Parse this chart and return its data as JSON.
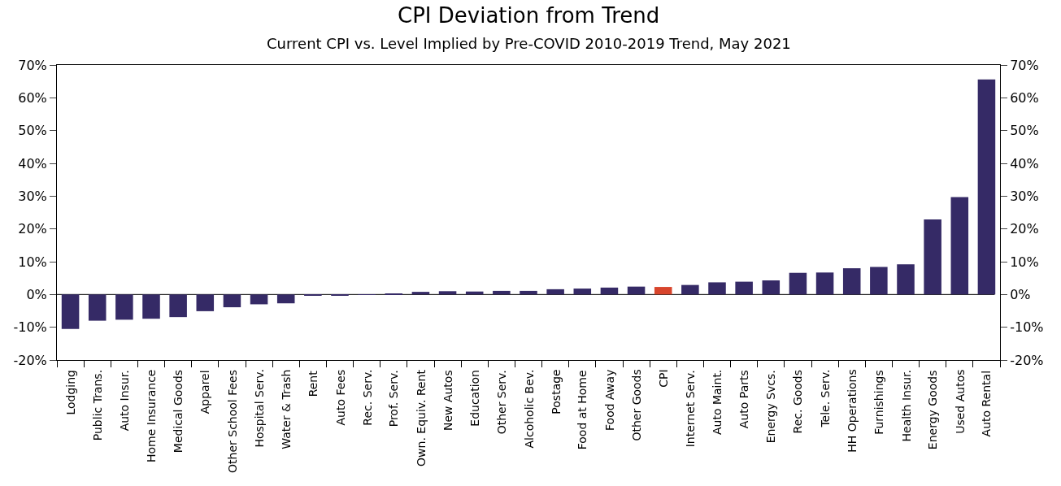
{
  "chart_data": {
    "type": "bar",
    "title": "CPI Deviation from Trend",
    "subtitle": "Current CPI vs. Level Implied by Pre-COVID 2010-2019 Trend, May 2021",
    "categories": [
      "Lodging",
      "Public Trans.",
      "Auto Insur.",
      "Home Insurance",
      "Medical Goods",
      "Apparel",
      "Other School Fees",
      "Hospital Serv.",
      "Water & Trash",
      "Rent",
      "Auto Fees",
      "Rec. Serv.",
      "Prof. Serv.",
      "Own. Equiv. Rent",
      "New Autos",
      "Education",
      "Other Serv.",
      "Alcoholic Bev.",
      "Postage",
      "Food at Home",
      "Food Away",
      "Other Goods",
      "CPI",
      "Internet Serv.",
      "Auto Maint.",
      "Auto Parts",
      "Energy Svcs.",
      "Rec. Goods",
      "Tele. Serv.",
      "HH Operations",
      "Furnishings",
      "Health Insur.",
      "Energy Goods",
      "Used Autos",
      "Auto Rental"
    ],
    "values": [
      -10.5,
      -8.0,
      -7.7,
      -7.4,
      -6.9,
      -5.1,
      -3.9,
      -3.0,
      -2.7,
      -0.4,
      -0.2,
      -0.1,
      0.2,
      0.8,
      1.0,
      0.9,
      1.1,
      1.1,
      1.6,
      1.8,
      2.1,
      2.4,
      2.3,
      2.9,
      3.7,
      3.9,
      4.3,
      6.6,
      6.7,
      8.0,
      8.4,
      9.2,
      22.9,
      29.7,
      65.6
    ],
    "colors": [
      "#352a66",
      "#352a66",
      "#352a66",
      "#352a66",
      "#352a66",
      "#352a66",
      "#352a66",
      "#352a66",
      "#352a66",
      "#352a66",
      "#352a66",
      "#352a66",
      "#352a66",
      "#352a66",
      "#352a66",
      "#352a66",
      "#352a66",
      "#352a66",
      "#352a66",
      "#352a66",
      "#352a66",
      "#352a66",
      "#d8452c",
      "#352a66",
      "#352a66",
      "#352a66",
      "#352a66",
      "#352a66",
      "#352a66",
      "#352a66",
      "#352a66",
      "#352a66",
      "#352a66",
      "#352a66",
      "#352a66"
    ],
    "ylim": [
      -20,
      70
    ],
    "yticks": [
      {
        "value": -20,
        "label": "-20%"
      },
      {
        "value": -10,
        "label": "-10%"
      },
      {
        "value": 0,
        "label": "0%"
      },
      {
        "value": 10,
        "label": "10%"
      },
      {
        "value": 20,
        "label": "20%"
      },
      {
        "value": 30,
        "label": "30%"
      },
      {
        "value": 40,
        "label": "40%"
      },
      {
        "value": 50,
        "label": "50%"
      },
      {
        "value": 60,
        "label": "60%"
      },
      {
        "value": 70,
        "label": "70%"
      }
    ],
    "y2lim": [
      -20,
      70
    ],
    "y2ticks": [
      {
        "value": -20,
        "label": "-20%"
      },
      {
        "value": -10,
        "label": "-10%"
      },
      {
        "value": 0,
        "label": "0%"
      },
      {
        "value": 10,
        "label": "10%"
      },
      {
        "value": 20,
        "label": "20%"
      },
      {
        "value": 30,
        "label": "30%"
      },
      {
        "value": 40,
        "label": "40%"
      },
      {
        "value": 50,
        "label": "50%"
      },
      {
        "value": 60,
        "label": "60%"
      },
      {
        "value": 70,
        "label": "70%"
      }
    ]
  }
}
